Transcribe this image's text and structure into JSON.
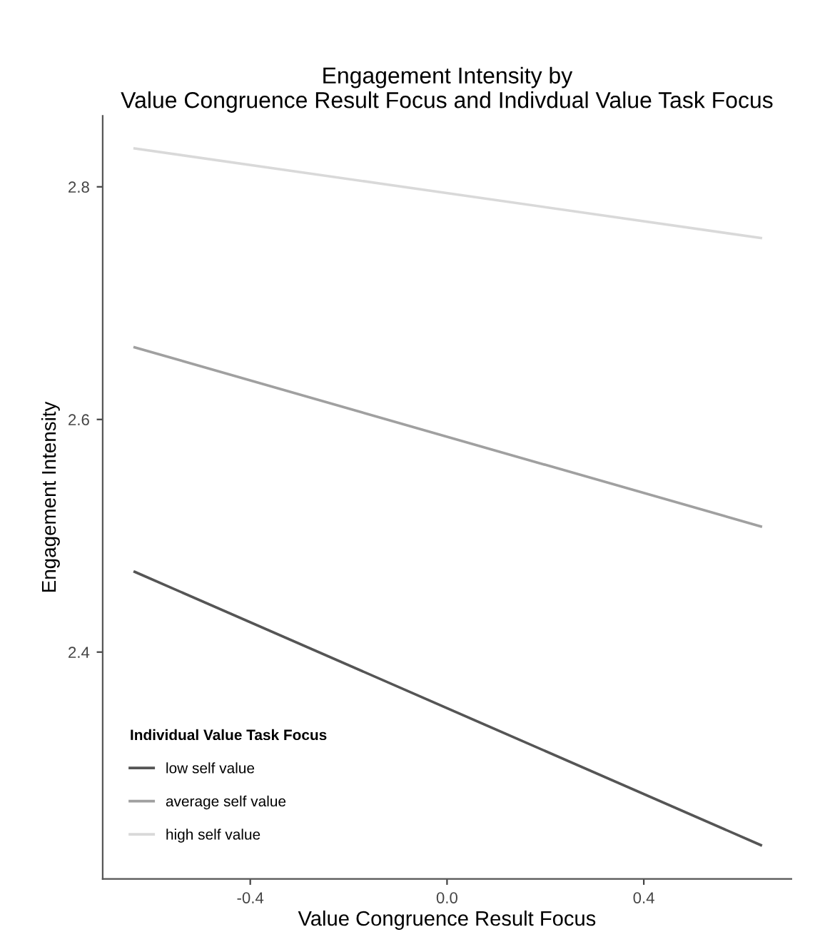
{
  "chart_data": {
    "type": "line",
    "title": "Engagement Intensity by\nValue Congruence Result Focus and Indivdual Value Task Focus",
    "xlabel": "Value Congruence Result Focus",
    "ylabel": "Engagement Intensity",
    "legend_title": "Individual Value Task Focus",
    "legend": "bottom left",
    "grid": false,
    "x": [
      -0.635,
      0.638
    ],
    "series": [
      {
        "name": "low self value",
        "color": "#555555",
        "values": [
          2.469,
          2.234
        ]
      },
      {
        "name": "average self value",
        "color": "#a0a0a0",
        "values": [
          2.662,
          2.508
        ]
      },
      {
        "name": "high self value",
        "color": "#d9d9d9",
        "values": [
          2.833,
          2.756
        ]
      }
    ],
    "xlim": [
      -0.7,
      0.7
    ],
    "xticks": [
      -0.4,
      {
        "value": 0.0,
        "label": "0.0"
      },
      0.4
    ],
    "ylim": [
      2.205,
      2.861
    ],
    "yticks": [
      2.4,
      2.6,
      2.8
    ]
  }
}
